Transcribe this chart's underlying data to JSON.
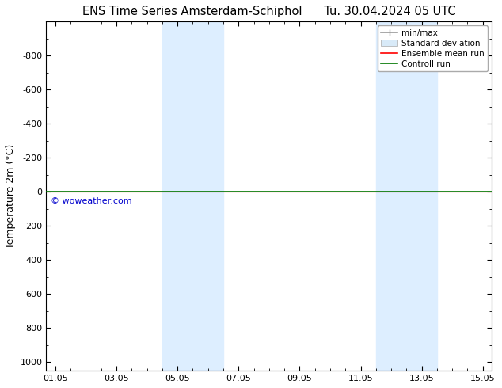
{
  "title_left": "ENS Time Series Amsterdam-Schiphol",
  "title_right": "Tu. 30.04.2024 05 UTC",
  "ylabel": "Temperature 2m (°C)",
  "ylim_top": -1000,
  "ylim_bottom": 1050,
  "yticks": [
    -800,
    -600,
    -400,
    -200,
    0,
    200,
    400,
    600,
    800,
    1000
  ],
  "xtick_labels": [
    "01.05",
    "03.05",
    "05.05",
    "07.05",
    "09.05",
    "11.05",
    "13.05",
    "15.05"
  ],
  "xtick_positions": [
    0,
    2,
    4,
    6,
    8,
    10,
    12,
    14
  ],
  "xlim": [
    -0.3,
    14.3
  ],
  "shaded_bands": [
    {
      "x_start": 3.5,
      "x_end": 5.5
    },
    {
      "x_start": 10.5,
      "x_end": 12.5
    }
  ],
  "shade_color": "#ddeeff",
  "horizontal_line_y": 0,
  "green_line_color": "#007700",
  "red_line_color": "#ff0000",
  "watermark_text": "© woweather.com",
  "watermark_color": "#0000cc",
  "legend_labels": [
    "min/max",
    "Standard deviation",
    "Ensemble mean run",
    "Controll run"
  ],
  "legend_colors_line": [
    "#999999",
    "#cccccc",
    "#ff0000",
    "#007700"
  ],
  "background_color": "#ffffff",
  "plot_background": "#ffffff",
  "title_fontsize": 10.5,
  "ylabel_fontsize": 9,
  "tick_fontsize": 8,
  "legend_fontsize": 7.5
}
